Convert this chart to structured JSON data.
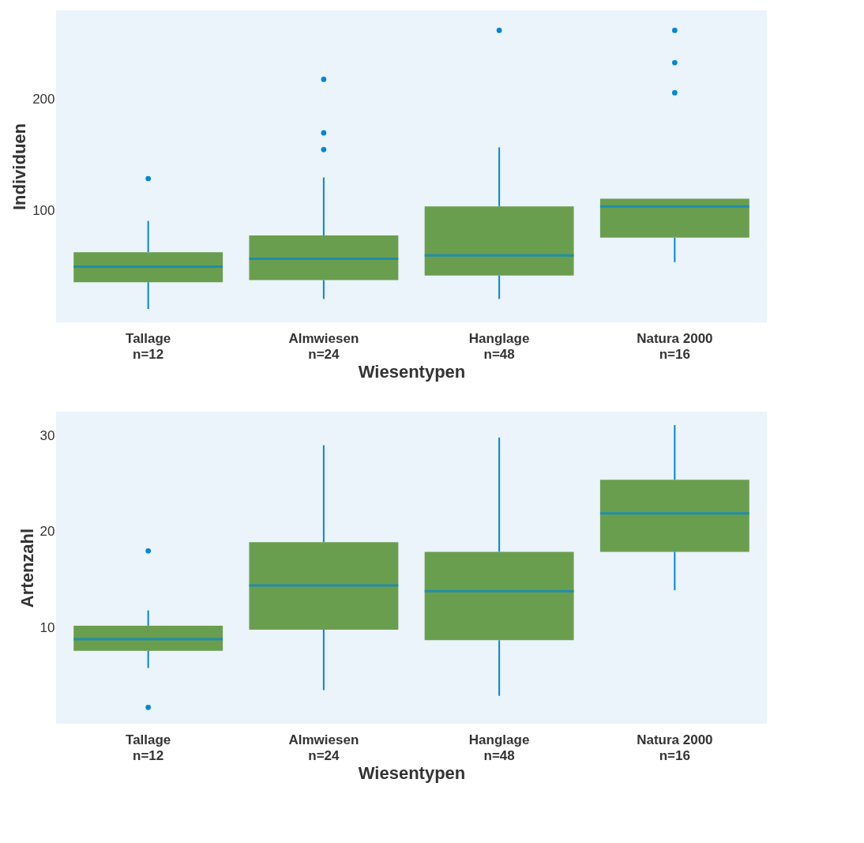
{
  "chart_data": [
    {
      "type": "box",
      "ylabel": "Individuen",
      "xlabel": "Wiesentypen",
      "categories": [
        "Tallage\nn=12",
        "Almwiesen\nn=24",
        "Hanglage\nn=48",
        "Natura 2000\nn=16"
      ],
      "color": "#6a9e4f",
      "ylim": [
        0,
        280
      ],
      "yticks": [
        100,
        200
      ],
      "grid": false,
      "boxes": [
        {
          "low": 12,
          "q1": 36,
          "median": 50,
          "q3": 63,
          "high": 91,
          "outliers": [
            129
          ]
        },
        {
          "low": 21,
          "q1": 38,
          "median": 57,
          "q3": 78,
          "high": 130,
          "outliers": [
            155,
            170,
            218
          ]
        },
        {
          "low": 21,
          "q1": 42,
          "median": 60,
          "q3": 104,
          "high": 157,
          "outliers": [
            262
          ]
        },
        {
          "low": 54,
          "q1": 76,
          "median": 104,
          "q3": 111,
          "high": 111,
          "outliers": [
            206,
            233,
            262
          ]
        }
      ]
    },
    {
      "type": "box",
      "ylabel": "Artenzahl",
      "xlabel": "Wiesentypen",
      "categories": [
        "Tallage\nn=12",
        "Almwiesen\nn=24",
        "Hanglage\nn=48",
        "Natura 2000\nn=16"
      ],
      "color": "#6a9e4f",
      "ylim": [
        0,
        32.5
      ],
      "yticks": [
        10,
        20,
        30
      ],
      "grid": false,
      "boxes": [
        {
          "low": 5.8,
          "q1": 7.6,
          "median": 8.8,
          "q3": 10.2,
          "high": 11.8,
          "outliers": [
            1.7,
            18
          ]
        },
        {
          "low": 3.5,
          "q1": 9.8,
          "median": 14.4,
          "q3": 18.9,
          "high": 29
        },
        {
          "low": 2.9,
          "q1": 8.7,
          "median": 13.8,
          "q3": 17.9,
          "high": 29.8
        },
        {
          "low": 13.9,
          "q1": 17.9,
          "median": 21.9,
          "q3": 25.4,
          "high": 31.1
        }
      ]
    }
  ]
}
